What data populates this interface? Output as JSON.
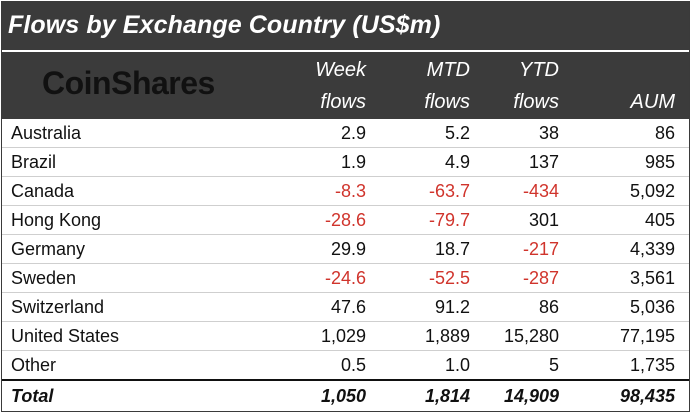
{
  "title": "Flows by Exchange Country (US$m)",
  "logo": "CoinShares",
  "columns": [
    {
      "line1": "Week",
      "line2": "flows"
    },
    {
      "line1": "MTD",
      "line2": "flows"
    },
    {
      "line1": "YTD",
      "line2": "flows"
    },
    {
      "line1": "",
      "line2": "AUM"
    }
  ],
  "rows": [
    {
      "country": "Australia",
      "week": "2.9",
      "mtd": "5.2",
      "ytd": "38",
      "aum": "86"
    },
    {
      "country": "Brazil",
      "week": "1.9",
      "mtd": "4.9",
      "ytd": "137",
      "aum": "985"
    },
    {
      "country": "Canada",
      "week": "-8.3",
      "mtd": "-63.7",
      "ytd": "-434",
      "aum": "5,092"
    },
    {
      "country": "Hong Kong",
      "week": "-28.6",
      "mtd": "-79.7",
      "ytd": "301",
      "aum": "405"
    },
    {
      "country": "Germany",
      "week": "29.9",
      "mtd": "18.7",
      "ytd": "-217",
      "aum": "4,339"
    },
    {
      "country": "Sweden",
      "week": "-24.6",
      "mtd": "-52.5",
      "ytd": "-287",
      "aum": "3,561"
    },
    {
      "country": "Switzerland",
      "week": "47.6",
      "mtd": "91.2",
      "ytd": "86",
      "aum": "5,036"
    },
    {
      "country": "United States",
      "week": "1,029",
      "mtd": "1,889",
      "ytd": "15,280",
      "aum": "77,195"
    },
    {
      "country": "Other",
      "week": "0.5",
      "mtd": "1.0",
      "ytd": "5",
      "aum": "1,735"
    }
  ],
  "total": {
    "label": "Total",
    "week": "1,050",
    "mtd": "1,814",
    "ytd": "14,909",
    "aum": "98,435"
  },
  "colors": {
    "header_bg": "#3b3b3b",
    "negative": "#d0342c",
    "text": "#111111"
  }
}
